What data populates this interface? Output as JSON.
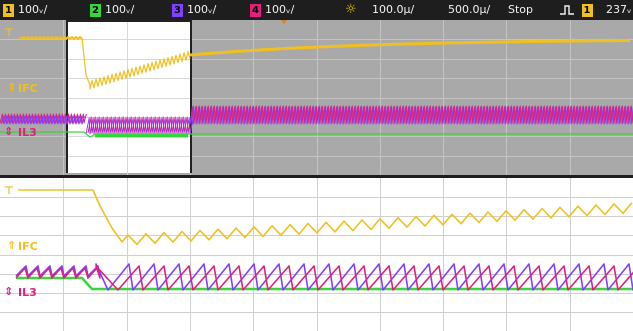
{
  "status_bar": {
    "channels": [
      {
        "number": "1",
        "scale": "100ᵥ/",
        "color": "#f0c020"
      },
      {
        "number": "2",
        "scale": "100ᵥ/",
        "color": "#39d639"
      },
      {
        "number": "3",
        "scale": "100ᵥ/",
        "color": "#8040ff"
      },
      {
        "number": "4",
        "scale": "100ᵥ/",
        "color": "#e0207a"
      }
    ],
    "main_timebase": "100.0µ/",
    "zoom_timebase": "500.0µ/",
    "run_state": "Stop",
    "trigger_source": "1",
    "trigger_level": "237ᵥ"
  },
  "labels": {
    "main_ifc": "IFC",
    "main_il3": "IL3",
    "zoom_ifc": "IFC",
    "zoom_il3": "IL3"
  },
  "colors": {
    "ch1": "#f0c020",
    "ch2": "#39d639",
    "ch3": "#8040ff",
    "ch4": "#e0207a",
    "main_background": "#a9a9a9",
    "zoom_window_background": "#ffffff"
  }
}
